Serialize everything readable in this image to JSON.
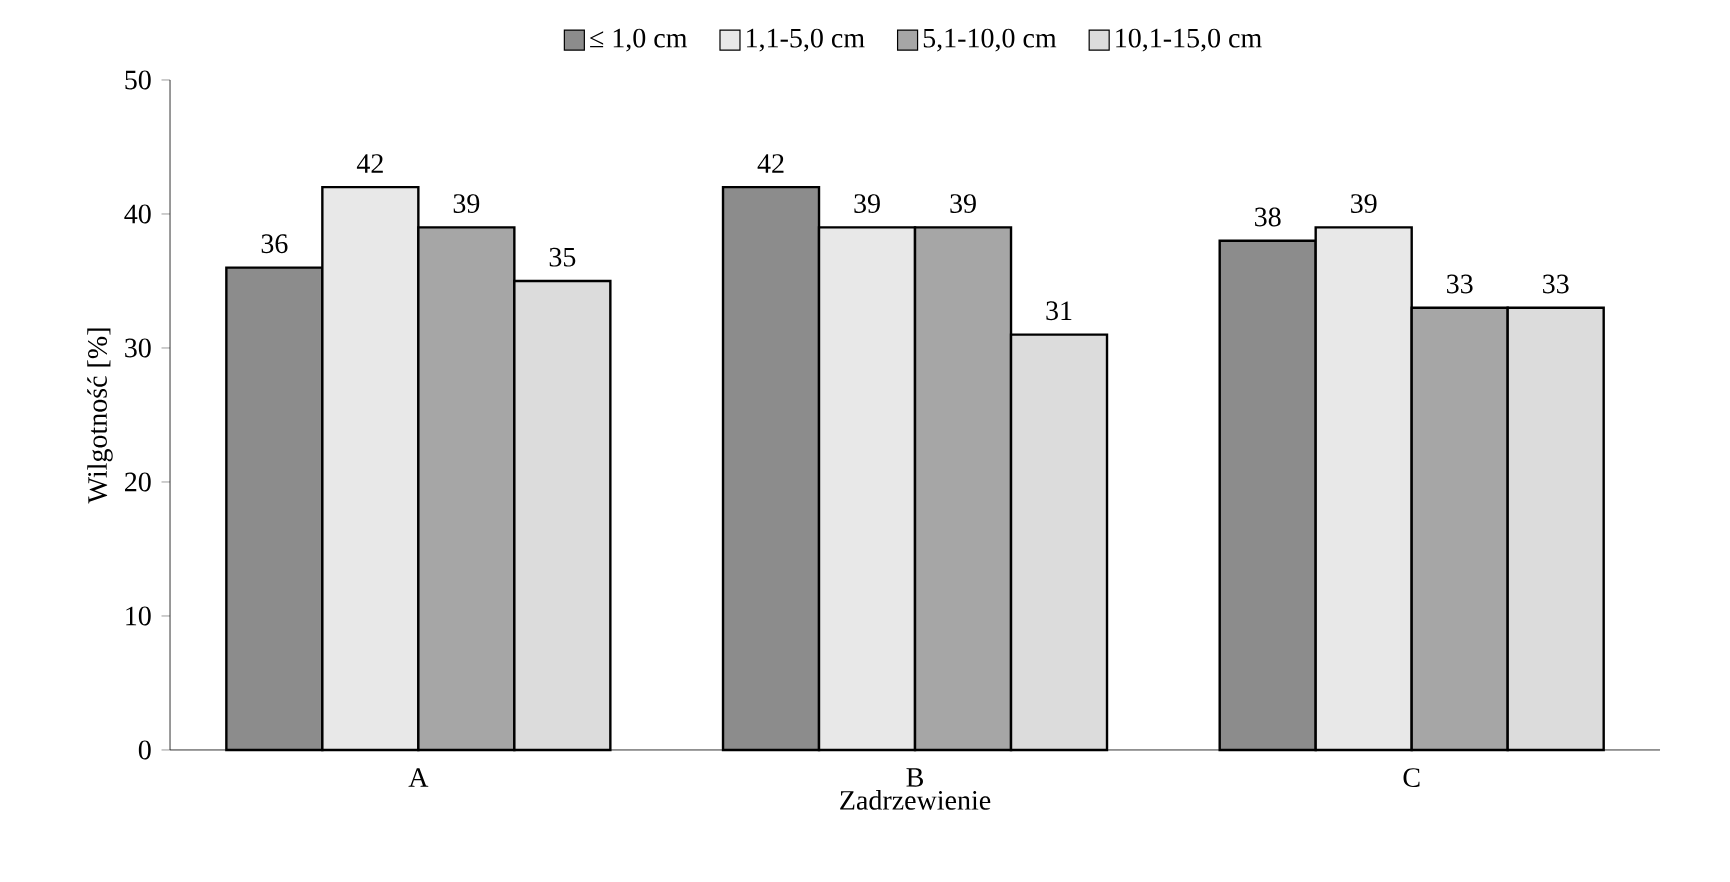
{
  "chart_data": {
    "type": "bar",
    "xlabel": "Zadrzewienie",
    "ylabel": "Wilgotność  [%]",
    "categories": [
      "A",
      "B",
      "C"
    ],
    "series": [
      {
        "name": "≤ 1,0 cm",
        "color": "#8c8c8c",
        "values": [
          36,
          42,
          38
        ]
      },
      {
        "name": "1,1-5,0 cm",
        "color": "#e8e8e8",
        "values": [
          42,
          39,
          39
        ]
      },
      {
        "name": "5,1-10,0 cm",
        "color": "#a6a6a6",
        "values": [
          39,
          39,
          33
        ]
      },
      {
        "name": "10,1-15,0 cm",
        "color": "#dcdcdc",
        "values": [
          35,
          31,
          33
        ]
      }
    ],
    "ylim": [
      0,
      50
    ],
    "yticks": [
      0,
      10,
      20,
      30,
      40,
      50
    ],
    "data_labels": true,
    "legend": "top",
    "grid": false
  }
}
